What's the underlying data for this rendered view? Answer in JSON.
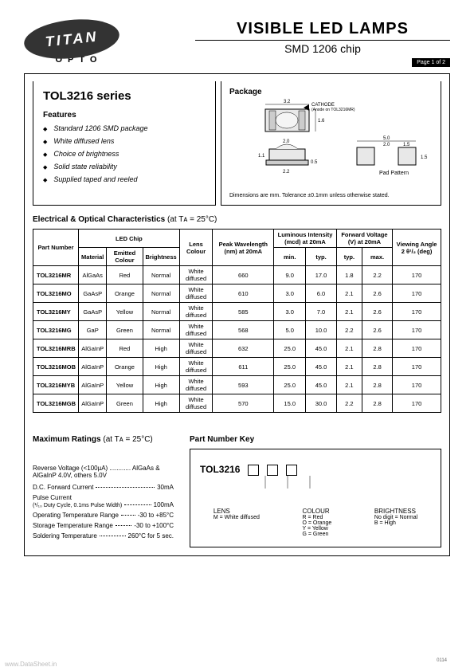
{
  "logo": {
    "main": "TITAN",
    "sub": "OPTO"
  },
  "title": "VISIBLE  LED  LAMPS",
  "subtitle": "SMD 1206 chip",
  "page_badge": "Page 1 of 2",
  "series_title": "TOL3216 series",
  "features_heading": "Features",
  "features": [
    "Standard 1206 SMD package",
    "White diffused lens",
    "Choice of brightness",
    "Solid state reliability",
    "Supplied taped and reeled"
  ],
  "package": {
    "title": "Package",
    "note": "Dimensions are mm. Tolerance ±0.1mm unless otherwise stated.",
    "cathode_label": "CATHODE\n(Anode on TOL3216MR)",
    "pad_label": "Pad Pattern",
    "dims": {
      "w": "3.2",
      "h": "1.6",
      "lens_w": "2.0",
      "body_h": "1.1",
      "pad_h": "0.5",
      "pad_bottom": "2.2",
      "pattern_w": "5.0",
      "pattern_gap": "2.0",
      "pattern_pad": "1.5",
      "pattern_h": "1.5"
    }
  },
  "char_heading": "Electrical & Optical Characteristics",
  "char_cond": "(at Tᴀ = 25°C)",
  "table": {
    "headers": {
      "pn": "Part Number",
      "chip": "LED Chip",
      "material": "Material",
      "emitted": "Emitted Colour",
      "brightness": "Brightness",
      "lens": "Lens Colour",
      "peak": "Peak Wavelength (nm) at 20mA",
      "lum": "Luminous Intensity (mcd) at 20mA",
      "lum_min": "min.",
      "lum_typ": "typ.",
      "fv": "Forward Voltage (V) at 20mA",
      "fv_typ": "typ.",
      "fv_max": "max.",
      "va": "Viewing Angle 2 θ¹/₂ (deg)"
    },
    "rows": [
      {
        "pn": "TOL3216MR",
        "mat": "AlGaAs",
        "col": "Red",
        "br": "Normal",
        "lens": "White diffused",
        "peak": "660",
        "lmin": "9.0",
        "ltyp": "17.0",
        "vtyp": "1.8",
        "vmax": "2.2",
        "va": "170"
      },
      {
        "pn": "TOL3216MO",
        "mat": "GaAsP",
        "col": "Orange",
        "br": "Normal",
        "lens": "White diffused",
        "peak": "610",
        "lmin": "3.0",
        "ltyp": "6.0",
        "vtyp": "2.1",
        "vmax": "2.6",
        "va": "170"
      },
      {
        "pn": "TOL3216MY",
        "mat": "GaAsP",
        "col": "Yellow",
        "br": "Normal",
        "lens": "White diffused",
        "peak": "585",
        "lmin": "3.0",
        "ltyp": "7.0",
        "vtyp": "2.1",
        "vmax": "2.6",
        "va": "170"
      },
      {
        "pn": "TOL3216MG",
        "mat": "GaP",
        "col": "Green",
        "br": "Normal",
        "lens": "White diffused",
        "peak": "568",
        "lmin": "5.0",
        "ltyp": "10.0",
        "vtyp": "2.2",
        "vmax": "2.6",
        "va": "170"
      },
      {
        "pn": "TOL3216MRB",
        "mat": "AlGaInP",
        "col": "Red",
        "br": "High",
        "lens": "White diffused",
        "peak": "632",
        "lmin": "25.0",
        "ltyp": "45.0",
        "vtyp": "2.1",
        "vmax": "2.8",
        "va": "170"
      },
      {
        "pn": "TOL3216MOB",
        "mat": "AlGaInP",
        "col": "Orange",
        "br": "High",
        "lens": "White diffused",
        "peak": "611",
        "lmin": "25.0",
        "ltyp": "45.0",
        "vtyp": "2.1",
        "vmax": "2.8",
        "va": "170"
      },
      {
        "pn": "TOL3216MYB",
        "mat": "AlGaInP",
        "col": "Yellow",
        "br": "High",
        "lens": "White diffused",
        "peak": "593",
        "lmin": "25.0",
        "ltyp": "45.0",
        "vtyp": "2.1",
        "vmax": "2.8",
        "va": "170"
      },
      {
        "pn": "TOL3216MGB",
        "mat": "AlGaInP",
        "col": "Green",
        "br": "High",
        "lens": "White diffused",
        "peak": "570",
        "lmin": "15.0",
        "ltyp": "30.0",
        "vtyp": "2.2",
        "vmax": "2.8",
        "va": "170"
      }
    ]
  },
  "max_heading": "Maximum Ratings",
  "max_cond": "(at Tᴀ = 25°C)",
  "max_ratings": [
    {
      "label": "Reverse Voltage (<100µA) ............ AlGaAs & AlGaInP 4.0V, others 5.0V",
      "value": ""
    },
    {
      "label": "D.C. Forward Current",
      "value": "30mA"
    },
    {
      "label": "Pulse Current",
      "value": "100mA",
      "sub": "(¹/₁₀ Duty Cycle, 0.1ms Pulse Width)"
    },
    {
      "label": "Operating Temperature Range",
      "value": "-30 to +85°C"
    },
    {
      "label": "Storage Temperature Range",
      "value": "-30 to +100°C"
    },
    {
      "label": "Soldering Temperature",
      "value": "260°C for 5 sec."
    }
  ],
  "pnkey": {
    "heading": "Part Number Key",
    "base": "TOL3216",
    "lens": {
      "title": "LENS",
      "items": [
        "M = White diffused"
      ]
    },
    "colour": {
      "title": "COLOUR",
      "items": [
        "R = Red",
        "O = Orange",
        "Y = Yellow",
        "G = Green"
      ]
    },
    "brightness": {
      "title": "BRIGHTNESS",
      "items": [
        "No digit = Normal",
        "B = High"
      ]
    }
  },
  "watermark": "www.DataSheet.in",
  "footdate": "0114"
}
